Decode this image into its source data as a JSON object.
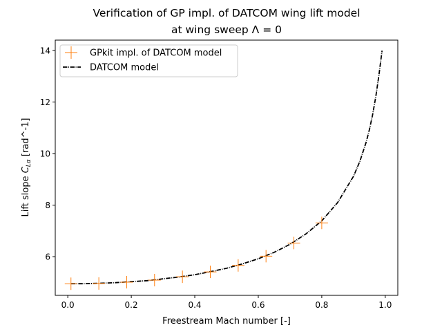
{
  "chart_data": {
    "type": "line",
    "title_line1": "Verification of GP impl. of DATCOM wing lift model",
    "title_line2_prefix": "at wing sweep ",
    "title_line2_symbol": "Λ = 0",
    "xlabel": "Freestream Mach number [-]",
    "ylabel_prefix": "Lift slope ",
    "ylabel_symbol": "C",
    "ylabel_subscript": "Lα",
    "ylabel_suffix": " [rad^-1]",
    "xlim": [
      -0.0395,
      1.0395
    ],
    "ylim": [
      4.5,
      14.4
    ],
    "xticks": [
      0,
      0.2,
      0.4,
      0.6,
      0.8,
      1
    ],
    "xtick_labels": [
      "0.0",
      "0.2",
      "0.4",
      "0.6",
      "0.8",
      "1.0"
    ],
    "yticks": [
      6,
      8,
      10,
      12,
      14
    ],
    "ytick_labels": [
      "6",
      "8",
      "10",
      "12",
      "14"
    ],
    "legend_position": "top-left",
    "series": [
      {
        "name": "GPkit impl. of DATCOM model",
        "style": "markers-plus",
        "color": "#ff7f0e",
        "x": [
          0.01,
          0.0978,
          0.1856,
          0.2733,
          0.3611,
          0.4489,
          0.5367,
          0.6244,
          0.7122,
          0.8
        ],
        "y": [
          4.95,
          4.96,
          5.01,
          5.09,
          5.22,
          5.41,
          5.66,
          6.02,
          6.53,
          7.31
        ]
      },
      {
        "name": "DATCOM model",
        "style": "dash-dot",
        "color": "#000000",
        "x": [
          0.01,
          0.05,
          0.1,
          0.15,
          0.2,
          0.25,
          0.3,
          0.35,
          0.4,
          0.45,
          0.5,
          0.55,
          0.6,
          0.65,
          0.7,
          0.75,
          0.8,
          0.85,
          0.9,
          0.92,
          0.94,
          0.95,
          0.96,
          0.97,
          0.98,
          0.99
        ],
        "y": [
          4.95,
          4.95,
          4.97,
          4.99,
          5.03,
          5.07,
          5.14,
          5.21,
          5.3,
          5.42,
          5.55,
          5.72,
          5.92,
          6.17,
          6.48,
          6.88,
          7.39,
          8.1,
          9.12,
          9.7,
          10.45,
          10.93,
          11.5,
          12.2,
          13.03,
          13.99
        ]
      }
    ]
  }
}
